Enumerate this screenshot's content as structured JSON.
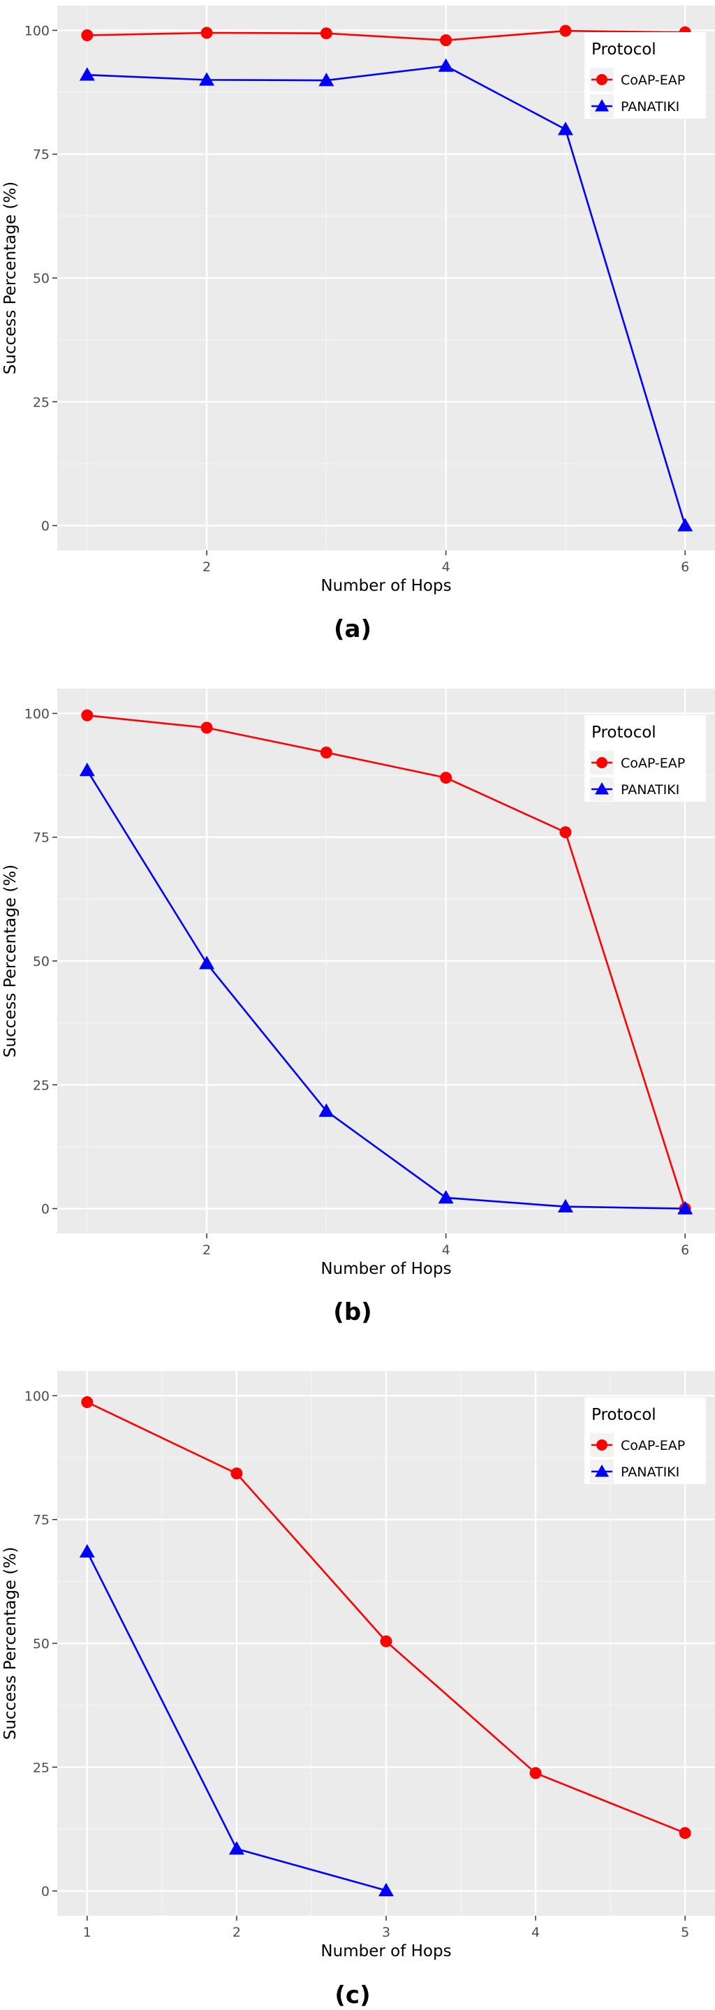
{
  "chart_data": [
    {
      "type": "line",
      "x": [
        1,
        2,
        3,
        4,
        5,
        6
      ],
      "series": [
        {
          "name": "CoAP-EAP",
          "values": [
            99,
            99.5,
            99.4,
            98,
            99.9,
            99.6
          ],
          "color": "#ff0000",
          "marker": "circle"
        },
        {
          "name": "PANATIKI",
          "values": [
            91,
            90,
            89.9,
            92.8,
            80,
            0
          ],
          "color": "#0000ff",
          "marker": "triangle"
        }
      ],
      "xlabel": "Number of Hops",
      "ylabel": "Success Percentage (%)",
      "x_ticks": [
        2,
        4,
        6
      ],
      "y_ticks": [
        0,
        25,
        50,
        75,
        100
      ],
      "xlim": [
        0.75,
        6.25
      ],
      "ylim": [
        -5,
        105
      ],
      "grid": true,
      "legend_title": "Protocol",
      "legend_position": "top-right",
      "caption": "(a)"
    },
    {
      "type": "line",
      "x": [
        1,
        2,
        3,
        4,
        5,
        6
      ],
      "series": [
        {
          "name": "CoAP-EAP",
          "values": [
            99.6,
            97.1,
            92.1,
            87,
            76,
            0
          ],
          "color": "#ff0000",
          "marker": "circle"
        },
        {
          "name": "PANATIKI",
          "values": [
            88.5,
            49.5,
            19.7,
            2.2,
            0.4,
            0
          ],
          "color": "#0000ff",
          "marker": "triangle"
        }
      ],
      "xlabel": "Number of Hops",
      "ylabel": "Success Percentage (%)",
      "x_ticks": [
        2,
        4,
        6
      ],
      "y_ticks": [
        0,
        25,
        50,
        75,
        100
      ],
      "xlim": [
        0.75,
        6.25
      ],
      "ylim": [
        -5,
        105
      ],
      "grid": true,
      "legend_title": "Protocol",
      "legend_position": "top-right",
      "caption": "(b)"
    },
    {
      "type": "line",
      "x": [
        1,
        2,
        3,
        4,
        5
      ],
      "series": [
        {
          "name": "CoAP-EAP",
          "values": [
            98.7,
            84.3,
            50.4,
            23.8,
            11.7
          ],
          "color": "#ff0000",
          "marker": "circle"
        },
        {
          "name": "PANATIKI",
          "values": [
            68.5,
            8.5,
            0.1,
            null,
            null
          ],
          "color": "#0000ff",
          "marker": "triangle"
        }
      ],
      "xlabel": "Number of Hops",
      "ylabel": "Success Percentage (%)",
      "x_ticks": [
        1,
        2,
        3,
        4,
        5
      ],
      "y_ticks": [
        0,
        25,
        50,
        75,
        100
      ],
      "xlim": [
        0.8,
        5.2
      ],
      "ylim": [
        -5,
        105
      ],
      "grid": true,
      "legend_title": "Protocol",
      "legend_position": "top-right",
      "caption": "(c)"
    }
  ]
}
